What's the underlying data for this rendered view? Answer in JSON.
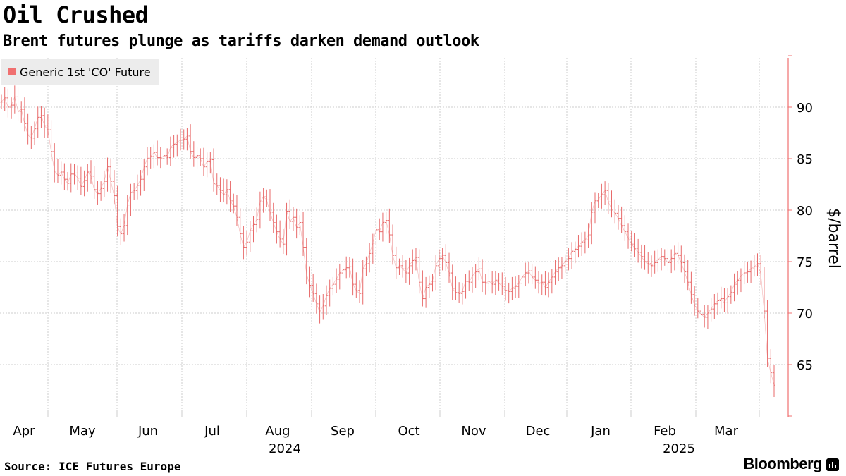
{
  "header": {
    "title": "Oil Crushed",
    "subtitle": "Brent futures plunge as tariffs darken demand outlook"
  },
  "footer": {
    "source": "Source: ICE Futures Europe",
    "brand": "Bloomberg"
  },
  "colors": {
    "series": "#e86a6a",
    "axis": "#f07070",
    "grid": "#cccccc"
  },
  "chart_data": {
    "type": "line",
    "title": "Oil Crushed",
    "subtitle": "Brent futures plunge as tariffs darken demand outlook",
    "ylabel": "$/barrel",
    "xlabel": "",
    "ylim": [
      60,
      95
    ],
    "yticks": [
      65,
      70,
      75,
      80,
      85,
      90
    ],
    "x_month_labels": [
      "Apr",
      "May",
      "Jun",
      "Jul",
      "Aug",
      "Sep",
      "Oct",
      "Nov",
      "Dec",
      "Jan",
      "Feb",
      "Mar"
    ],
    "year_labels": [
      "2024",
      "2025"
    ],
    "legend": [
      "Generic 1st 'CO' Future"
    ],
    "legend_position": "top-left",
    "grid": true,
    "series": [
      {
        "name": "Generic 1st 'CO' Future",
        "x_unit": "trading day index (0 = early Apr 2024)",
        "values": [
          90.5,
          90.9,
          90.0,
          90.2,
          91.0,
          89.6,
          89.8,
          88.4,
          87.3,
          87.0,
          87.9,
          89.0,
          89.2,
          88.2,
          87.8,
          85.7,
          83.8,
          83.4,
          83.7,
          83.0,
          82.6,
          83.5,
          83.6,
          83.1,
          82.3,
          82.9,
          83.7,
          83.3,
          82.0,
          81.6,
          82.1,
          82.8,
          84.2,
          82.8,
          81.4,
          78.4,
          77.7,
          78.5,
          80.5,
          81.7,
          81.9,
          82.4,
          83.0,
          84.2,
          85.0,
          85.2,
          85.6,
          85.1,
          85.0,
          85.3,
          85.1,
          86.1,
          86.4,
          86.6,
          86.8,
          86.9,
          87.2,
          85.7,
          85.1,
          85.3,
          85.0,
          84.2,
          84.7,
          84.9,
          82.6,
          82.4,
          81.9,
          81.5,
          82.0,
          80.9,
          80.4,
          79.3,
          77.7,
          76.4,
          76.9,
          78.0,
          78.6,
          79.1,
          80.8,
          81.3,
          81.0,
          79.8,
          78.8,
          77.9,
          77.2,
          76.7,
          79.9,
          78.9,
          79.3,
          78.3,
          78.8,
          76.4,
          73.8,
          72.7,
          71.9,
          70.9,
          70.1,
          70.7,
          71.7,
          72.4,
          72.8,
          73.3,
          73.9,
          74.2,
          74.4,
          74.5,
          72.8,
          72.2,
          71.9,
          74.3,
          74.8,
          75.8,
          76.8,
          78.1,
          77.9,
          78.8,
          79.0,
          77.6,
          75.6,
          74.4,
          74.6,
          74.3,
          73.9,
          74.6,
          75.1,
          75.4,
          73.0,
          71.4,
          72.5,
          72.8,
          73.1,
          74.6,
          75.3,
          75.6,
          74.9,
          73.9,
          72.4,
          72.0,
          71.9,
          72.1,
          73.1,
          73.0,
          73.6,
          74.0,
          74.3,
          73.0,
          72.9,
          73.1,
          72.8,
          73.2,
          72.9,
          72.6,
          72.2,
          72.1,
          72.4,
          72.6,
          72.9,
          73.5,
          73.9,
          74.1,
          73.5,
          73.2,
          72.9,
          73.0,
          72.5,
          73.0,
          73.5,
          74.0,
          74.4,
          74.6,
          75.0,
          75.3,
          76.0,
          76.2,
          76.5,
          76.9,
          77.1,
          77.6,
          79.8,
          80.9,
          81.0,
          81.5,
          81.9,
          80.8,
          80.1,
          79.7,
          79.2,
          78.5,
          77.9,
          77.3,
          76.7,
          76.3,
          75.9,
          75.5,
          75.0,
          74.8,
          74.6,
          74.9,
          75.2,
          75.5,
          75.3,
          74.9,
          75.3,
          75.8,
          75.6,
          74.9,
          74.0,
          73.0,
          71.8,
          70.8,
          70.2,
          69.9,
          69.6,
          70.0,
          70.4,
          70.9,
          71.2,
          71.4,
          71.0,
          71.6,
          72.0,
          72.8,
          73.2,
          73.6,
          73.9,
          74.0,
          74.3,
          74.5,
          74.8,
          73.8,
          70.2,
          65.6,
          64.2,
          63.0
        ]
      }
    ]
  }
}
